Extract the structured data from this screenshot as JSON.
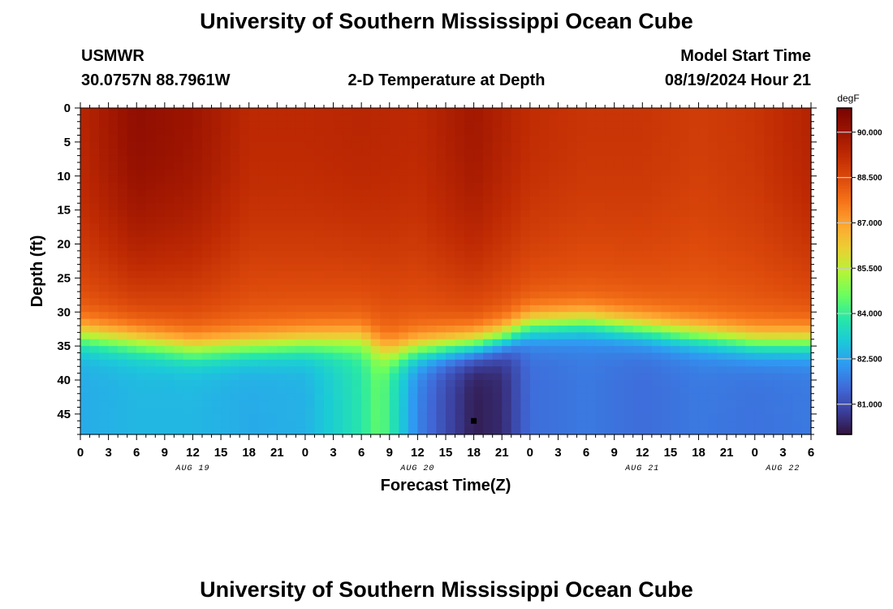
{
  "header": {
    "title": "University of Southern Mississippi Ocean Cube",
    "station": "USMWR",
    "coords": "30.0757N  88.7961W",
    "subtitle": "2-D Temperature at Depth",
    "model_label": "Model Start Time",
    "model_time": "08/19/2024 Hour 21",
    "footer_title": "University of Southern Mississippi Ocean Cube"
  },
  "colors": {
    "ramp": [
      "#30123b",
      "#3b3f9c",
      "#4069d8",
      "#2f99f2",
      "#1bc9d9",
      "#28e8a6",
      "#6cfe5e",
      "#b6f437",
      "#ebcf34",
      "#fea631",
      "#f67419",
      "#dd4a0b",
      "#bf2a03",
      "#9c1401",
      "#7a0403"
    ]
  },
  "chart_data": {
    "type": "heatmap",
    "title": "2-D Temperature at Depth",
    "xlabel": "Forecast Time(Z)",
    "ylabel": "Depth (ft)",
    "x_range_hours": [
      0,
      78
    ],
    "x_tick_labels": [
      "0",
      "3",
      "6",
      "9",
      "12",
      "15",
      "18",
      "21",
      "0",
      "3",
      "6",
      "9",
      "12",
      "15",
      "18",
      "21",
      "0",
      "3",
      "6",
      "9",
      "12",
      "15",
      "18",
      "21",
      "0",
      "3",
      "6"
    ],
    "date_labels": [
      {
        "text": "AUG 19",
        "hour": 12
      },
      {
        "text": "AUG 20",
        "hour": 36
      },
      {
        "text": "AUG 21",
        "hour": 60
      },
      {
        "text": "AUG 22",
        "hour": 75
      }
    ],
    "y_range": [
      0,
      48
    ],
    "y_tick_labels": [
      "0",
      "5",
      "10",
      "15",
      "20",
      "25",
      "30",
      "35",
      "40",
      "45"
    ],
    "y_tick_values": [
      0,
      5,
      10,
      15,
      20,
      25,
      30,
      35,
      40,
      45
    ],
    "colorbar": {
      "unit": "degF",
      "range": [
        80.0,
        90.8
      ],
      "tick_labels": [
        "90.000",
        "88.500",
        "87.000",
        "85.500",
        "84.000",
        "82.500",
        "81.000"
      ],
      "tick_values": [
        90.0,
        88.5,
        87.0,
        85.5,
        84.0,
        82.5,
        81.0
      ]
    },
    "marker": {
      "hour": 42,
      "depth": 46
    },
    "surface_temp": [
      [
        0,
        89.4
      ],
      [
        6,
        90.3
      ],
      [
        12,
        90.0
      ],
      [
        18,
        89.3
      ],
      [
        24,
        89.3
      ],
      [
        30,
        89.4
      ],
      [
        36,
        89.3
      ],
      [
        42,
        89.9
      ],
      [
        48,
        89.2
      ],
      [
        54,
        89.0
      ],
      [
        60,
        89.0
      ],
      [
        66,
        88.8
      ],
      [
        72,
        89.0
      ],
      [
        78,
        89.5
      ]
    ],
    "thermocline_depth_ft": [
      [
        0,
        33.5
      ],
      [
        6,
        34.5
      ],
      [
        12,
        35.5
      ],
      [
        18,
        35
      ],
      [
        24,
        34.5
      ],
      [
        30,
        34
      ],
      [
        33,
        36
      ],
      [
        36,
        35.5
      ],
      [
        42,
        35
      ],
      [
        45,
        34
      ],
      [
        48,
        32
      ],
      [
        54,
        31.5
      ],
      [
        60,
        32.5
      ],
      [
        66,
        33.5
      ],
      [
        72,
        34.5
      ],
      [
        78,
        34.5
      ]
    ],
    "bottom_temp": [
      [
        0,
        82.6
      ],
      [
        6,
        82.8
      ],
      [
        12,
        82.8
      ],
      [
        18,
        82.6
      ],
      [
        24,
        82.7
      ],
      [
        30,
        83.8
      ],
      [
        32,
        84.6
      ],
      [
        36,
        82.0
      ],
      [
        39,
        81.0
      ],
      [
        42,
        80.2
      ],
      [
        45,
        80.4
      ],
      [
        48,
        81.6
      ],
      [
        54,
        81.8
      ],
      [
        60,
        81.6
      ],
      [
        66,
        81.8
      ],
      [
        72,
        81.7
      ],
      [
        78,
        81.8
      ]
    ]
  }
}
